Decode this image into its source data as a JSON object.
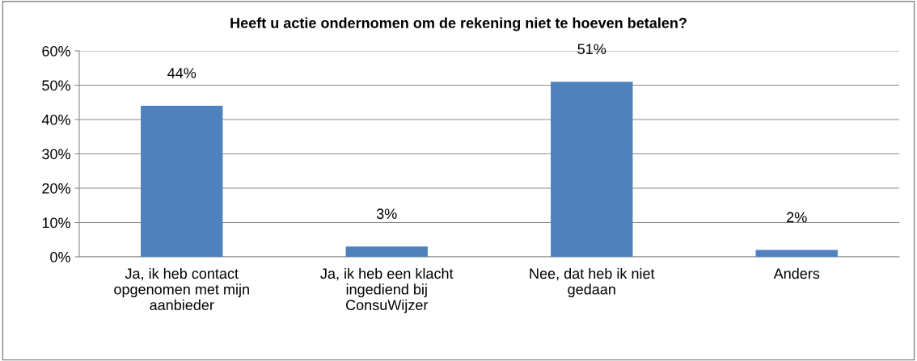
{
  "chart_data": {
    "type": "bar",
    "title": "Heeft u actie ondernomen om de rekening niet te hoeven betalen?",
    "categories": [
      "Ja, ik heb contact opgenomen met mijn aanbieder",
      "Ja, ik heb een klacht ingediend bij ConsuWijzer",
      "Nee, dat heb ik niet gedaan",
      "Anders"
    ],
    "values": [
      44,
      3,
      51,
      2
    ],
    "value_labels": [
      "44%",
      "3%",
      "51%",
      "2%"
    ],
    "color": "#4f81bd",
    "ylim": [
      0,
      60
    ],
    "yticks": [
      {
        "value": 0,
        "label": "0%"
      },
      {
        "value": 10,
        "label": "10%"
      },
      {
        "value": 20,
        "label": "20%"
      },
      {
        "value": 30,
        "label": "30%"
      },
      {
        "value": 40,
        "label": "40%"
      },
      {
        "value": 50,
        "label": "50%"
      },
      {
        "value": 60,
        "label": "60%"
      }
    ],
    "grid": "y",
    "legend": false
  }
}
